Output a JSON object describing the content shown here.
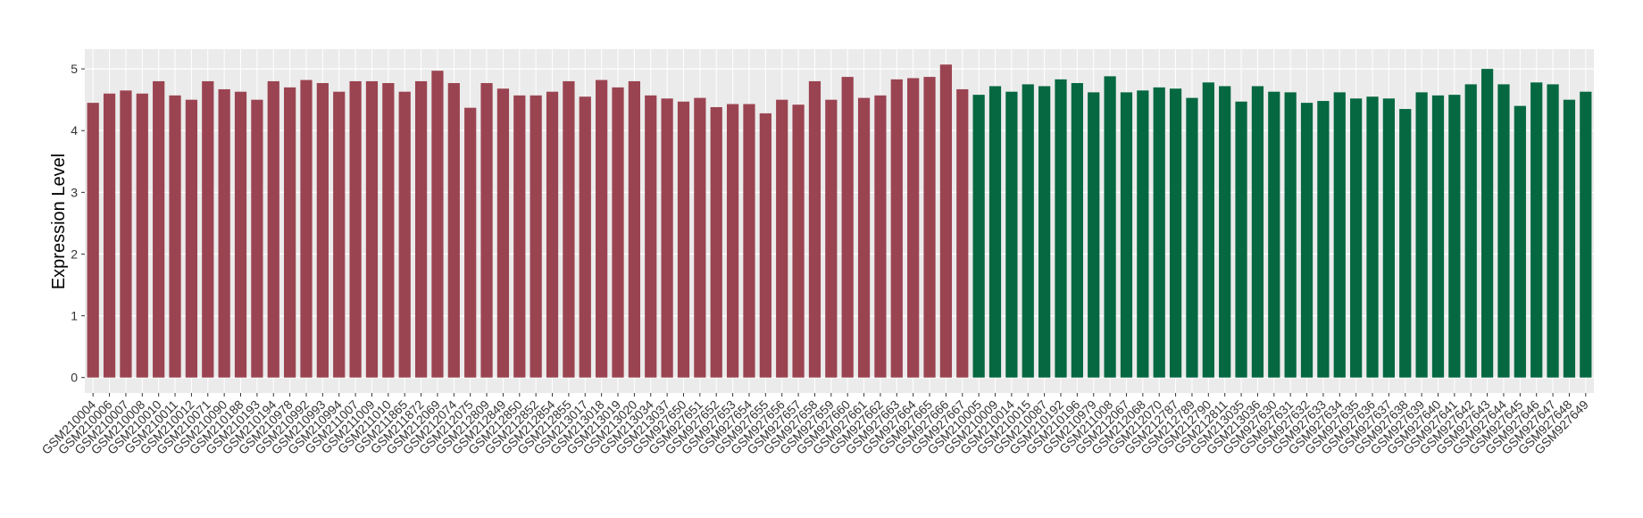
{
  "chart_data": {
    "type": "bar",
    "y_label": "Expression Level",
    "categories": [
      "GSM210004",
      "GSM210006",
      "GSM210007",
      "GSM210008",
      "GSM210010",
      "GSM210011",
      "GSM210012",
      "GSM210071",
      "GSM210090",
      "GSM210188",
      "GSM210193",
      "GSM210194",
      "GSM210978",
      "GSM210992",
      "GSM210993",
      "GSM210994",
      "GSM211007",
      "GSM211009",
      "GSM211010",
      "GSM211865",
      "GSM211872",
      "GSM212069",
      "GSM212074",
      "GSM212075",
      "GSM212809",
      "GSM212849",
      "GSM212850",
      "GSM212852",
      "GSM212854",
      "GSM212855",
      "GSM213017",
      "GSM213018",
      "GSM213019",
      "GSM213020",
      "GSM213034",
      "GSM213037",
      "GSM927650",
      "GSM927651",
      "GSM927652",
      "GSM927653",
      "GSM927654",
      "GSM927655",
      "GSM927656",
      "GSM927657",
      "GSM927658",
      "GSM927659",
      "GSM927660",
      "GSM927661",
      "GSM927662",
      "GSM927663",
      "GSM927664",
      "GSM927665",
      "GSM927666",
      "GSM927667",
      "GSM210005",
      "GSM210009",
      "GSM210014",
      "GSM210015",
      "GSM210087",
      "GSM210192",
      "GSM210196",
      "GSM210979",
      "GSM211008",
      "GSM212067",
      "GSM212068",
      "GSM212070",
      "GSM212787",
      "GSM212789",
      "GSM212790",
      "GSM212811",
      "GSM213035",
      "GSM213036",
      "GSM927630",
      "GSM927631",
      "GSM927632",
      "GSM927633",
      "GSM927634",
      "GSM927635",
      "GSM927636",
      "GSM927637",
      "GSM927638",
      "GSM927639",
      "GSM927640",
      "GSM927641",
      "GSM927642",
      "GSM927643",
      "GSM927644",
      "GSM927645",
      "GSM927646",
      "GSM927647",
      "GSM927648",
      "GSM927649"
    ],
    "values": [
      4.45,
      4.6,
      4.65,
      4.6,
      4.8,
      4.57,
      4.5,
      4.8,
      4.67,
      4.63,
      4.5,
      4.8,
      4.7,
      4.82,
      4.77,
      4.63,
      4.8,
      4.8,
      4.77,
      4.63,
      4.8,
      4.97,
      4.77,
      4.37,
      4.77,
      4.68,
      4.57,
      4.57,
      4.63,
      4.8,
      4.55,
      4.82,
      4.7,
      4.8,
      4.57,
      4.52,
      4.47,
      4.53,
      4.38,
      4.43,
      4.43,
      4.28,
      4.5,
      4.42,
      4.8,
      4.5,
      4.87,
      4.53,
      4.57,
      4.83,
      4.85,
      4.87,
      5.07,
      4.67,
      4.58,
      4.72,
      4.63,
      4.75,
      4.72,
      4.83,
      4.77,
      4.62,
      4.88,
      4.62,
      4.65,
      4.7,
      4.68,
      4.53,
      4.78,
      4.72,
      4.47,
      4.72,
      4.63,
      4.62,
      4.45,
      4.48,
      4.62,
      4.52,
      4.55,
      4.52,
      4.35,
      4.62,
      4.57,
      4.58,
      4.75,
      5.0,
      4.75,
      4.4,
      4.78,
      4.75,
      4.5,
      4.63
    ],
    "bar_colors": [
      "#9b4451",
      "#9b4451",
      "#9b4451",
      "#9b4451",
      "#9b4451",
      "#9b4451",
      "#9b4451",
      "#9b4451",
      "#9b4451",
      "#9b4451",
      "#9b4451",
      "#9b4451",
      "#9b4451",
      "#9b4451",
      "#9b4451",
      "#9b4451",
      "#9b4451",
      "#9b4451",
      "#9b4451",
      "#9b4451",
      "#9b4451",
      "#9b4451",
      "#9b4451",
      "#9b4451",
      "#9b4451",
      "#9b4451",
      "#9b4451",
      "#9b4451",
      "#9b4451",
      "#9b4451",
      "#9b4451",
      "#9b4451",
      "#9b4451",
      "#9b4451",
      "#9b4451",
      "#9b4451",
      "#9b4451",
      "#9b4451",
      "#9b4451",
      "#9b4451",
      "#9b4451",
      "#9b4451",
      "#9b4451",
      "#9b4451",
      "#9b4451",
      "#9b4451",
      "#9b4451",
      "#9b4451",
      "#9b4451",
      "#9b4451",
      "#9b4451",
      "#9b4451",
      "#9b4451",
      "#9b4451",
      "#056841",
      "#056841",
      "#056841",
      "#056841",
      "#056841",
      "#056841",
      "#056841",
      "#056841",
      "#056841",
      "#056841",
      "#056841",
      "#056841",
      "#056841",
      "#056841",
      "#056841",
      "#056841",
      "#056841",
      "#056841",
      "#056841",
      "#056841",
      "#056841",
      "#056841",
      "#056841",
      "#056841",
      "#056841",
      "#056841",
      "#056841",
      "#056841",
      "#056841",
      "#056841",
      "#056841",
      "#056841",
      "#056841",
      "#056841",
      "#056841",
      "#056841",
      "#056841",
      "#056841"
    ],
    "ylim": [
      -0.25,
      5.32
    ],
    "yticks": [
      0,
      1,
      2,
      3,
      4,
      5
    ],
    "grid": true
  }
}
